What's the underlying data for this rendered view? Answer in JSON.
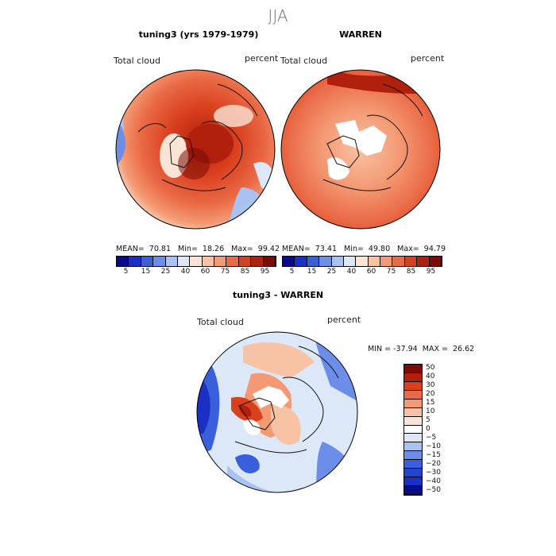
{
  "figure": {
    "season": "JJA"
  },
  "panels": [
    {
      "title": "tuning3 (yrs 1979-1979)",
      "variable": "Total cloud",
      "units": "percent",
      "stats_line": "MEAN=  70.81   Min=  18.26   Max=  99.42"
    },
    {
      "title": "WARREN",
      "variable": "Total cloud",
      "units": "percent",
      "stats_line": "MEAN=  73.41   Min=  49.80   Max=  94.79"
    },
    {
      "title": "tuning3 - WARREN",
      "variable": "Total cloud",
      "units": "percent",
      "stats_line": "MIN = -37.94  MAX =  26.62"
    }
  ],
  "colorbars": {
    "absolute": {
      "labels": [
        "5",
        "15",
        "25",
        "40",
        "60",
        "75",
        "85",
        "95"
      ],
      "colors": [
        "#0a0a8c",
        "#1c2fc4",
        "#3a5fdc",
        "#6c8ee8",
        "#a8c3f2",
        "#dce8f8",
        "#fbe4d6",
        "#f8c2a4",
        "#f39a74",
        "#ea6a46",
        "#d9401e",
        "#b0200c",
        "#7a0b06"
      ]
    },
    "difference": {
      "labels": [
        "50",
        "40",
        "30",
        "20",
        "15",
        "10",
        "5",
        "0",
        "−5",
        "−10",
        "−15",
        "−20",
        "−30",
        "−40",
        "−50"
      ],
      "colors": [
        "#7a0b06",
        "#b0200c",
        "#d9401e",
        "#ea6a46",
        "#f39a74",
        "#f8c2a4",
        "#fbe4d6",
        "#ffffff",
        "#dce8f8",
        "#a8c3f2",
        "#6c8ee8",
        "#3a5fdc",
        "#2145d0",
        "#1c2fc4",
        "#0a0a8c"
      ]
    }
  }
}
